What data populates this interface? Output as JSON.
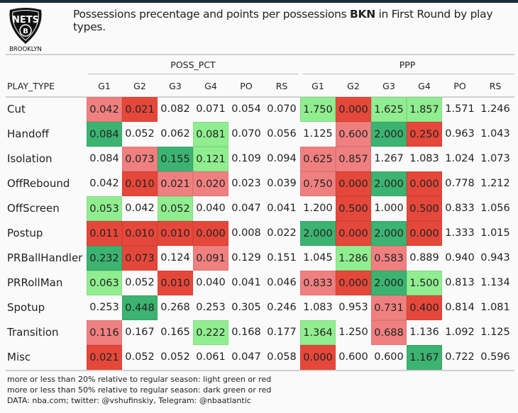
{
  "header": {
    "logo_text": "NETS BROOKLYN",
    "title_pre": "Possessions precentage and points per possessions ",
    "title_team": "BKN",
    "title_post": " in First Round by play types."
  },
  "chart_data": {
    "type": "table",
    "spanners": [
      "POSS_PCT",
      "PPP"
    ],
    "row_header": "PLAY_TYPE",
    "columns": [
      "G1",
      "G2",
      "G3",
      "G4",
      "PO",
      "RS"
    ],
    "palette": {
      "lr": "#f08080",
      "dr": "#e5483a",
      "lg": "#90ee90",
      "dg": "#3cb371"
    },
    "rows": [
      {
        "label": "Cut",
        "poss": [
          "0.042",
          "0.021",
          "0.082",
          "0.071",
          "0.054",
          "0.070"
        ],
        "poss_color": [
          "lr",
          "dr",
          "",
          "",
          "",
          ""
        ],
        "ppp": [
          "1.750",
          "0.000",
          "1.625",
          "1.857",
          "1.571",
          "1.246"
        ],
        "ppp_color": [
          "lg",
          "dr",
          "lg",
          "lg",
          "",
          ""
        ]
      },
      {
        "label": "Handoff",
        "poss": [
          "0.084",
          "0.052",
          "0.062",
          "0.081",
          "0.070",
          "0.056"
        ],
        "poss_color": [
          "dg",
          "",
          "",
          "lg",
          "",
          ""
        ],
        "ppp": [
          "1.125",
          "0.600",
          "2.000",
          "0.250",
          "0.963",
          "1.043"
        ],
        "ppp_color": [
          "",
          "lr",
          "dg",
          "dr",
          "",
          ""
        ]
      },
      {
        "label": "Isolation",
        "poss": [
          "0.084",
          "0.073",
          "0.155",
          "0.121",
          "0.109",
          "0.094"
        ],
        "poss_color": [
          "",
          "lr",
          "dg",
          "lg",
          "",
          ""
        ],
        "ppp": [
          "0.625",
          "0.857",
          "1.267",
          "1.083",
          "1.024",
          "1.073"
        ],
        "ppp_color": [
          "lr",
          "lr",
          "",
          "",
          "",
          ""
        ]
      },
      {
        "label": "OffRebound",
        "poss": [
          "0.042",
          "0.010",
          "0.021",
          "0.020",
          "0.023",
          "0.039"
        ],
        "poss_color": [
          "",
          "dr",
          "lr",
          "lr",
          "",
          ""
        ],
        "ppp": [
          "0.750",
          "0.000",
          "2.000",
          "0.000",
          "0.778",
          "1.212"
        ],
        "ppp_color": [
          "lr",
          "dr",
          "dg",
          "dr",
          "",
          ""
        ]
      },
      {
        "label": "OffScreen",
        "poss": [
          "0.053",
          "0.042",
          "0.052",
          "0.040",
          "0.047",
          "0.041"
        ],
        "poss_color": [
          "lg",
          "",
          "lg",
          "",
          "",
          ""
        ],
        "ppp": [
          "1.200",
          "0.500",
          "1.000",
          "0.500",
          "0.833",
          "1.056"
        ],
        "ppp_color": [
          "",
          "dr",
          "",
          "dr",
          "",
          ""
        ]
      },
      {
        "label": "Postup",
        "poss": [
          "0.011",
          "0.010",
          "0.010",
          "0.000",
          "0.008",
          "0.022"
        ],
        "poss_color": [
          "dr",
          "dr",
          "dr",
          "dr",
          "",
          ""
        ],
        "ppp": [
          "2.000",
          "0.000",
          "2.000",
          "0.000",
          "1.333",
          "1.015"
        ],
        "ppp_color": [
          "dg",
          "dr",
          "dg",
          "dr",
          "",
          ""
        ]
      },
      {
        "label": "PRBallHandler",
        "poss": [
          "0.232",
          "0.073",
          "0.124",
          "0.091",
          "0.129",
          "0.151"
        ],
        "poss_color": [
          "dg",
          "dr",
          "",
          "lr",
          "",
          ""
        ],
        "ppp": [
          "1.045",
          "1.286",
          "0.583",
          "0.889",
          "0.940",
          "0.943"
        ],
        "ppp_color": [
          "",
          "lg",
          "lr",
          "",
          "",
          ""
        ]
      },
      {
        "label": "PRRollMan",
        "poss": [
          "0.063",
          "0.052",
          "0.010",
          "0.040",
          "0.041",
          "0.046"
        ],
        "poss_color": [
          "lg",
          "",
          "dr",
          "",
          "",
          ""
        ],
        "ppp": [
          "0.833",
          "0.000",
          "2.000",
          "1.500",
          "0.813",
          "1.134"
        ],
        "ppp_color": [
          "lr",
          "dr",
          "dg",
          "lg",
          "",
          ""
        ]
      },
      {
        "label": "Spotup",
        "poss": [
          "0.253",
          "0.448",
          "0.268",
          "0.253",
          "0.305",
          "0.246"
        ],
        "poss_color": [
          "",
          "dg",
          "",
          "",
          "",
          ""
        ],
        "ppp": [
          "1.083",
          "0.953",
          "0.731",
          "0.400",
          "0.814",
          "1.081"
        ],
        "ppp_color": [
          "",
          "",
          "lr",
          "dr",
          "",
          ""
        ]
      },
      {
        "label": "Transition",
        "poss": [
          "0.116",
          "0.167",
          "0.165",
          "0.222",
          "0.168",
          "0.177"
        ],
        "poss_color": [
          "lr",
          "",
          "",
          "lg",
          "",
          ""
        ],
        "ppp": [
          "1.364",
          "1.250",
          "0.688",
          "1.136",
          "1.092",
          "1.125"
        ],
        "ppp_color": [
          "lg",
          "",
          "lr",
          "",
          "",
          ""
        ]
      },
      {
        "label": "Misc",
        "poss": [
          "0.021",
          "0.052",
          "0.052",
          "0.061",
          "0.047",
          "0.058"
        ],
        "poss_color": [
          "dr",
          "",
          "",
          "",
          "",
          ""
        ],
        "ppp": [
          "0.000",
          "0.600",
          "0.600",
          "1.167",
          "0.722",
          "0.596"
        ],
        "ppp_color": [
          "dr",
          "",
          "",
          "dg",
          "",
          ""
        ]
      }
    ]
  },
  "footnotes": [
    "more or less than 20% relative to regular season: light green or red",
    "more or less than 50% relative to regular season: dark green or red",
    "DATA: nba.com; twitter: @vshufinskiy, Telegram: @nbaatlantic"
  ]
}
